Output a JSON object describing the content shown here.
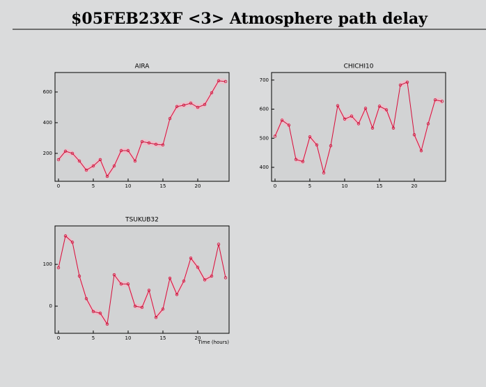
{
  "title": "$05FEB23XF <3>  Atmosphere path delay",
  "chart_data": [
    {
      "type": "line",
      "title": "AIRA",
      "x": [
        0,
        1,
        2,
        3,
        4,
        5,
        6,
        7,
        8,
        9,
        10,
        11,
        12,
        13,
        14,
        15,
        16,
        17,
        18,
        19,
        20,
        21,
        22,
        23,
        24
      ],
      "series": [
        {
          "color": "#d0103a",
          "values": [
            159,
            214,
            200,
            150,
            91,
            118,
            159,
            50,
            118,
            218,
            218,
            150,
            277,
            268,
            259,
            255,
            427,
            505,
            514,
            527,
            500,
            518,
            595,
            673,
            668
          ]
        }
      ],
      "xlim": [
        -0.5,
        24.5
      ],
      "xticks": [
        0,
        5,
        10,
        15,
        20
      ],
      "ylim": [
        18,
        727
      ],
      "yticks": [
        200,
        400,
        600
      ]
    },
    {
      "type": "line",
      "title": "CHICHI10",
      "x": [
        0,
        1,
        2,
        3,
        4,
        5,
        6,
        7,
        8,
        9,
        10,
        11,
        12,
        13,
        14,
        15,
        16,
        17,
        18,
        19,
        20,
        21,
        22,
        23,
        24
      ],
      "series": [
        {
          "color": "#d0103a",
          "values": [
            507,
            562,
            545,
            427,
            420,
            505,
            477,
            381,
            474,
            612,
            566,
            576,
            550,
            603,
            535,
            610,
            598,
            535,
            683,
            693,
            512,
            457,
            550,
            632,
            627
          ]
        }
      ],
      "xlim": [
        -0.5,
        24.5
      ],
      "xticks": [
        0,
        5,
        10,
        15,
        20
      ],
      "ylim": [
        352,
        726
      ],
      "yticks": [
        400,
        500,
        600,
        700
      ]
    },
    {
      "type": "line",
      "title": "TSUKUB32",
      "x_label": "Time (hours)",
      "x": [
        0,
        1,
        2,
        3,
        4,
        5,
        6,
        7,
        8,
        9,
        10,
        11,
        12,
        13,
        14,
        15,
        16,
        17,
        18,
        19,
        20,
        21,
        22,
        23,
        24
      ],
      "series": [
        {
          "color": "#d0103a",
          "values": [
            92,
            168,
            153,
            72,
            18,
            -13,
            -17,
            -43,
            75,
            53,
            53,
            0,
            -3,
            38,
            -27,
            -7,
            67,
            28,
            60,
            115,
            93,
            63,
            72,
            148,
            68
          ]
        }
      ],
      "xlim": [
        -0.5,
        24.5
      ],
      "xticks": [
        0,
        5,
        10,
        15,
        20
      ],
      "ylim": [
        -65,
        192
      ],
      "yticks": [
        0,
        100
      ]
    }
  ]
}
